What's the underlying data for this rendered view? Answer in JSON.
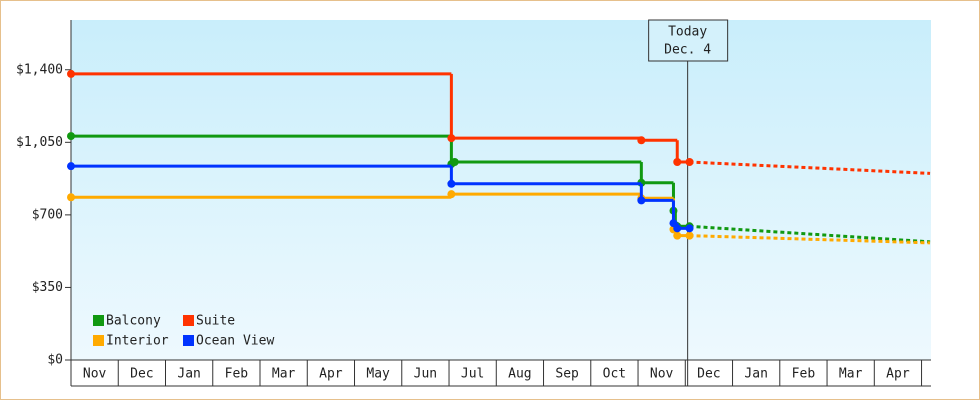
{
  "chart_data": {
    "type": "step-line",
    "categories": [
      "Nov",
      "Dec",
      "Jan",
      "Feb",
      "Mar",
      "Apr",
      "May",
      "Jun",
      "Jul",
      "Aug",
      "Sep",
      "Oct",
      "Nov",
      "Dec",
      "Jan",
      "Feb",
      "Mar",
      "Apr"
    ],
    "xlim": [
      0,
      18.2
    ],
    "ylim": [
      0,
      1640
    ],
    "yticks": [
      {
        "value": 0,
        "label": "$0"
      },
      {
        "value": 350,
        "label": "$350"
      },
      {
        "value": 700,
        "label": "$700"
      },
      {
        "value": 1050,
        "label": "$1,050"
      },
      {
        "value": 1400,
        "label": "$1,400"
      }
    ],
    "series": [
      {
        "name": "Balcony",
        "color": "#119911",
        "x": [
          0,
          8.05,
          8.12,
          12.07,
          12.75,
          12.79,
          12.83,
          13.09
        ],
        "values": [
          1080,
          945,
          955,
          855,
          720,
          650,
          645,
          645
        ],
        "forecast": {
          "x": [
            13.09,
            18.18
          ],
          "values": [
            645,
            570
          ]
        }
      },
      {
        "name": "Suite",
        "color": "#ff3300",
        "x": [
          0,
          8.05,
          12.07,
          12.83,
          13.09
        ],
        "values": [
          1380,
          1070,
          1060,
          955,
          955
        ],
        "forecast": {
          "x": [
            13.09,
            18.18
          ],
          "values": [
            955,
            900
          ]
        }
      },
      {
        "name": "Interior",
        "color": "#ffaa00",
        "x": [
          0,
          8.05,
          12.07,
          12.75,
          12.83,
          13.09
        ],
        "values": [
          785,
          800,
          780,
          630,
          600,
          600
        ],
        "forecast": {
          "x": [
            13.09,
            18.18
          ],
          "values": [
            600,
            565
          ]
        }
      },
      {
        "name": "Ocean View",
        "color": "#0033ff",
        "x": [
          0,
          8.05,
          12.07,
          12.75,
          12.83,
          13.09
        ],
        "values": [
          935,
          850,
          770,
          660,
          635,
          635
        ]
      }
    ],
    "annotation": {
      "lines": [
        "Today",
        "Dec. 4"
      ],
      "x": 13.05
    },
    "legend": "lower left"
  }
}
